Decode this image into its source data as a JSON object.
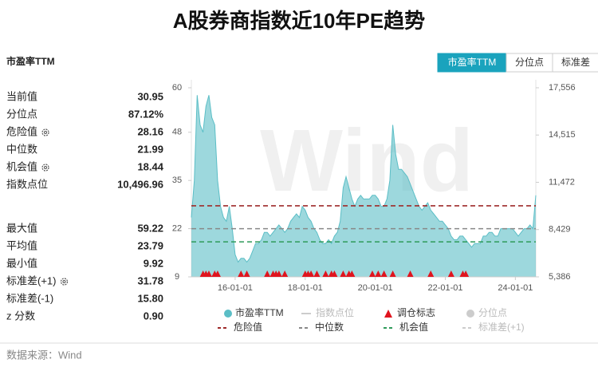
{
  "page_title": "A股券商指数近10年PE趋势",
  "panel_title": "市盈率TTM",
  "tabs": [
    "市盈率TTM",
    "分位点",
    "标准差"
  ],
  "stats_top": [
    {
      "label": "当前值",
      "value": "30.95"
    },
    {
      "label": "分位点",
      "value": "87.12%"
    },
    {
      "label": "危险值",
      "value": "28.16",
      "gear": true
    },
    {
      "label": "中位数",
      "value": "21.99"
    },
    {
      "label": "机会值",
      "value": "18.44",
      "gear": true
    },
    {
      "label": "指数点位",
      "value": "10,496.96"
    }
  ],
  "stats_bottom": [
    {
      "label": "最大值",
      "value": "59.22"
    },
    {
      "label": "平均值",
      "value": "23.79"
    },
    {
      "label": "最小值",
      "value": "9.92"
    },
    {
      "label": "标准差(+1)",
      "value": "31.78",
      "gear": true
    },
    {
      "label": "标准差(-1)",
      "value": "15.80"
    },
    {
      "label": "z 分数",
      "value": "0.90"
    }
  ],
  "source": "数据来源：Wind",
  "chart_data": {
    "type": "area",
    "watermark": "Wind",
    "x": [
      "14-10-01",
      "14-11-01",
      "14-12-01",
      "15-01-01",
      "15-02-01",
      "15-03-01",
      "15-04-01",
      "15-05-01",
      "15-06-01",
      "15-07-01",
      "15-08-01",
      "15-09-01",
      "15-10-01",
      "15-11-01",
      "15-12-01",
      "16-01-01",
      "16-02-01",
      "16-03-01",
      "16-04-01",
      "16-05-01",
      "16-06-01",
      "16-07-01",
      "16-08-01",
      "16-09-01",
      "16-10-01",
      "16-11-01",
      "16-12-01",
      "17-01-01",
      "17-02-01",
      "17-03-01",
      "17-04-01",
      "17-05-01",
      "17-06-01",
      "17-07-01",
      "17-08-01",
      "17-09-01",
      "17-10-01",
      "17-11-01",
      "17-12-01",
      "18-01-01",
      "18-02-01",
      "18-03-01",
      "18-04-01",
      "18-05-01",
      "18-06-01",
      "18-07-01",
      "18-08-01",
      "18-09-01",
      "18-10-01",
      "18-11-01",
      "18-12-01",
      "19-01-01",
      "19-02-01",
      "19-03-01",
      "19-04-01",
      "19-05-01",
      "19-06-01",
      "19-07-01",
      "19-08-01",
      "19-09-01",
      "19-10-01",
      "19-11-01",
      "19-12-01",
      "20-01-01",
      "20-02-01",
      "20-03-01",
      "20-04-01",
      "20-05-01",
      "20-06-01",
      "20-07-01",
      "20-08-01",
      "20-09-01",
      "20-10-01",
      "20-11-01",
      "20-12-01",
      "21-01-01",
      "21-02-01",
      "21-03-01",
      "21-04-01",
      "21-05-01",
      "21-06-01",
      "21-07-01",
      "21-08-01",
      "21-09-01",
      "21-10-01",
      "21-11-01",
      "21-12-01",
      "22-01-01",
      "22-02-01",
      "22-03-01",
      "22-04-01",
      "22-05-01",
      "22-06-01",
      "22-07-01",
      "22-08-01",
      "22-09-01",
      "22-10-01",
      "22-11-01",
      "22-12-01",
      "23-01-01",
      "23-02-01",
      "23-03-01",
      "23-04-01",
      "23-05-01",
      "23-06-01",
      "23-07-01",
      "23-08-01",
      "23-09-01",
      "23-10-01",
      "23-11-01",
      "23-12-01",
      "24-01-01",
      "24-02-01",
      "24-03-01",
      "24-04-01",
      "24-05-01",
      "24-06-01",
      "24-07-01",
      "24-08-01"
    ],
    "xlim": [
      "14-10-01",
      "24-08-01"
    ],
    "xticks": [
      "16-01-01",
      "18-01-01",
      "20-01-01",
      "22-01-01",
      "24-01-01"
    ],
    "series": [
      {
        "name": "市盈率TTM",
        "color": "#5bbec6",
        "values": [
          25,
          35,
          58,
          50,
          48,
          55,
          58,
          52,
          50,
          35,
          28,
          25,
          24,
          28,
          22,
          15,
          13,
          14,
          14,
          13,
          14,
          16,
          18,
          18,
          19,
          21,
          21,
          20,
          21,
          22,
          23,
          22,
          21,
          22,
          24,
          25,
          26,
          25,
          28,
          27,
          25,
          24,
          22,
          21,
          19,
          18,
          18,
          19,
          18,
          20,
          21,
          24,
          33,
          36,
          33,
          30,
          28,
          30,
          31,
          30,
          30,
          30,
          31,
          31,
          30,
          28,
          28,
          30,
          35,
          50,
          42,
          38,
          38,
          37,
          36,
          34,
          32,
          30,
          28,
          27,
          28,
          29,
          27,
          26,
          25,
          24,
          24,
          23,
          22,
          20,
          19,
          19,
          20,
          20,
          19,
          18,
          17,
          18,
          18,
          18,
          20,
          20,
          21,
          21,
          20,
          20,
          22,
          22,
          22,
          22,
          22,
          21,
          20,
          21,
          22,
          22,
          23,
          22,
          31
        ]
      }
    ],
    "ylim": [
      9,
      60
    ],
    "yticks": [
      9,
      22,
      35,
      48,
      60
    ],
    "y2lim": [
      5386,
      17556
    ],
    "y2ticks": [
      {
        "value": 5386,
        "label": "5,386"
      },
      {
        "value": 8429,
        "label": "8,429"
      },
      {
        "value": 11472,
        "label": "11,472"
      },
      {
        "value": 14515,
        "label": "14,515"
      },
      {
        "value": 17556,
        "label": "17,556"
      }
    ],
    "ref_lines": [
      {
        "name": "危险值",
        "value": 28.16,
        "color": "#9e2a2a"
      },
      {
        "name": "中位数",
        "value": 21.99,
        "color": "#888888"
      },
      {
        "name": "机会值",
        "value": 18.44,
        "color": "#2e9a5a"
      }
    ],
    "signals": {
      "name": "调仓标志",
      "color": "#e0141e",
      "x": [
        "15-02-01",
        "15-03-01",
        "15-04-01",
        "15-06-01",
        "15-07-01",
        "16-03-01",
        "16-05-01",
        "16-12-01",
        "17-02-01",
        "17-03-01",
        "17-04-01",
        "17-06-01",
        "18-01-01",
        "18-02-01",
        "18-03-01",
        "18-05-01",
        "18-08-01",
        "18-10-01",
        "18-11-01",
        "19-02-01",
        "19-04-01",
        "19-05-01",
        "19-12-01",
        "20-02-01",
        "20-04-01",
        "20-07-01",
        "21-01-01",
        "21-08-01",
        "22-03-01",
        "22-07-01",
        "22-08-01"
      ]
    },
    "legend_off": [
      {
        "name": "指数点位",
        "color": "#cccccc",
        "shape": "line"
      },
      {
        "name": "分位点",
        "color": "#cccccc",
        "shape": "dot"
      },
      {
        "name": "标准差(+1)",
        "color": "#cccccc",
        "shape": "dash"
      }
    ]
  }
}
